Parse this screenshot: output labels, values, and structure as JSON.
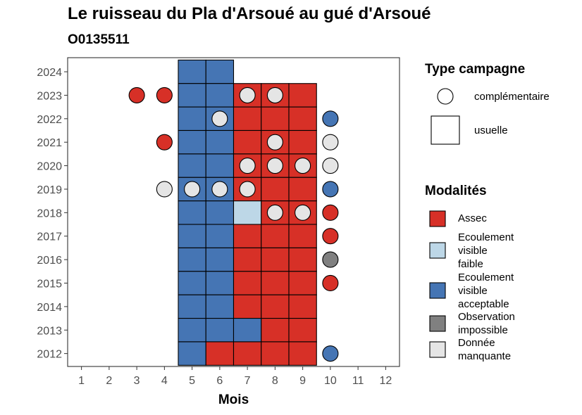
{
  "chart_data": {
    "type": "heatmap",
    "title": "Le ruisseau du Pla d'Arsoué au gué d'Arsoué",
    "subtitle": "O0135511",
    "xlabel": "Mois",
    "ylabel": "",
    "x_ticks": [
      "1",
      "2",
      "3",
      "4",
      "5",
      "6",
      "7",
      "8",
      "9",
      "10",
      "11",
      "12"
    ],
    "y_ticks": [
      "2012",
      "2013",
      "2014",
      "2015",
      "2016",
      "2017",
      "2018",
      "2019",
      "2020",
      "2021",
      "2022",
      "2023",
      "2024"
    ],
    "xlim": [
      0.5,
      12.5
    ],
    "ylim": [
      2011.45,
      2024.6
    ],
    "grid": false,
    "colors": {
      "Assec": "#d73027",
      "Ecoulement visible faible": "#bdd7e7",
      "Ecoulement visible acceptable": "#4575b4",
      "Observation impossible": "#808080",
      "Donnée manquante": "#e5e5e5"
    },
    "legend_type": {
      "title": "Type campagne",
      "items": [
        {
          "label": "complémentaire",
          "shape": "circle"
        },
        {
          "label": "usuelle",
          "shape": "square"
        }
      ]
    },
    "legend_modalites": {
      "title": "Modalités",
      "items": [
        {
          "key": "Assec",
          "lines": [
            "Assec"
          ]
        },
        {
          "key": "Ecoulement visible faible",
          "lines": [
            "Ecoulement",
            "visible",
            "faible"
          ]
        },
        {
          "key": "Ecoulement visible acceptable",
          "lines": [
            "Ecoulement",
            "visible",
            "acceptable"
          ]
        },
        {
          "key": "Observation impossible",
          "lines": [
            "Observation",
            "impossible"
          ]
        },
        {
          "key": "Donnée manquante",
          "lines": [
            "Donnée",
            "manquante"
          ]
        }
      ]
    },
    "usuelle": [
      {
        "year": 2024,
        "month": 5,
        "status": "Ecoulement visible acceptable"
      },
      {
        "year": 2024,
        "month": 6,
        "status": "Ecoulement visible acceptable"
      },
      {
        "year": 2023,
        "month": 5,
        "status": "Ecoulement visible acceptable"
      },
      {
        "year": 2023,
        "month": 6,
        "status": "Ecoulement visible acceptable"
      },
      {
        "year": 2023,
        "month": 7,
        "status": "Assec"
      },
      {
        "year": 2023,
        "month": 8,
        "status": "Assec"
      },
      {
        "year": 2023,
        "month": 9,
        "status": "Assec"
      },
      {
        "year": 2022,
        "month": 5,
        "status": "Ecoulement visible acceptable"
      },
      {
        "year": 2022,
        "month": 6,
        "status": "Ecoulement visible acceptable"
      },
      {
        "year": 2022,
        "month": 7,
        "status": "Assec"
      },
      {
        "year": 2022,
        "month": 8,
        "status": "Assec"
      },
      {
        "year": 2022,
        "month": 9,
        "status": "Assec"
      },
      {
        "year": 2021,
        "month": 5,
        "status": "Ecoulement visible acceptable"
      },
      {
        "year": 2021,
        "month": 6,
        "status": "Ecoulement visible acceptable"
      },
      {
        "year": 2021,
        "month": 7,
        "status": "Assec"
      },
      {
        "year": 2021,
        "month": 8,
        "status": "Assec"
      },
      {
        "year": 2021,
        "month": 9,
        "status": "Assec"
      },
      {
        "year": 2020,
        "month": 5,
        "status": "Ecoulement visible acceptable"
      },
      {
        "year": 2020,
        "month": 6,
        "status": "Ecoulement visible acceptable"
      },
      {
        "year": 2020,
        "month": 7,
        "status": "Assec"
      },
      {
        "year": 2020,
        "month": 8,
        "status": "Assec"
      },
      {
        "year": 2020,
        "month": 9,
        "status": "Assec"
      },
      {
        "year": 2019,
        "month": 5,
        "status": "Ecoulement visible acceptable"
      },
      {
        "year": 2019,
        "month": 6,
        "status": "Ecoulement visible acceptable"
      },
      {
        "year": 2019,
        "month": 7,
        "status": "Assec"
      },
      {
        "year": 2019,
        "month": 8,
        "status": "Assec"
      },
      {
        "year": 2019,
        "month": 9,
        "status": "Assec"
      },
      {
        "year": 2018,
        "month": 5,
        "status": "Ecoulement visible acceptable"
      },
      {
        "year": 2018,
        "month": 6,
        "status": "Ecoulement visible acceptable"
      },
      {
        "year": 2018,
        "month": 7,
        "status": "Ecoulement visible faible"
      },
      {
        "year": 2018,
        "month": 8,
        "status": "Assec"
      },
      {
        "year": 2018,
        "month": 9,
        "status": "Assec"
      },
      {
        "year": 2017,
        "month": 5,
        "status": "Ecoulement visible acceptable"
      },
      {
        "year": 2017,
        "month": 6,
        "status": "Ecoulement visible acceptable"
      },
      {
        "year": 2017,
        "month": 7,
        "status": "Assec"
      },
      {
        "year": 2017,
        "month": 8,
        "status": "Assec"
      },
      {
        "year": 2017,
        "month": 9,
        "status": "Assec"
      },
      {
        "year": 2016,
        "month": 5,
        "status": "Ecoulement visible acceptable"
      },
      {
        "year": 2016,
        "month": 6,
        "status": "Ecoulement visible acceptable"
      },
      {
        "year": 2016,
        "month": 7,
        "status": "Assec"
      },
      {
        "year": 2016,
        "month": 8,
        "status": "Assec"
      },
      {
        "year": 2016,
        "month": 9,
        "status": "Assec"
      },
      {
        "year": 2015,
        "month": 5,
        "status": "Ecoulement visible acceptable"
      },
      {
        "year": 2015,
        "month": 6,
        "status": "Ecoulement visible acceptable"
      },
      {
        "year": 2015,
        "month": 7,
        "status": "Assec"
      },
      {
        "year": 2015,
        "month": 8,
        "status": "Assec"
      },
      {
        "year": 2015,
        "month": 9,
        "status": "Assec"
      },
      {
        "year": 2014,
        "month": 5,
        "status": "Ecoulement visible acceptable"
      },
      {
        "year": 2014,
        "month": 6,
        "status": "Ecoulement visible acceptable"
      },
      {
        "year": 2014,
        "month": 7,
        "status": "Assec"
      },
      {
        "year": 2014,
        "month": 8,
        "status": "Assec"
      },
      {
        "year": 2014,
        "month": 9,
        "status": "Assec"
      },
      {
        "year": 2013,
        "month": 5,
        "status": "Ecoulement visible acceptable"
      },
      {
        "year": 2013,
        "month": 6,
        "status": "Ecoulement visible acceptable"
      },
      {
        "year": 2013,
        "month": 7,
        "status": "Ecoulement visible acceptable"
      },
      {
        "year": 2013,
        "month": 8,
        "status": "Assec"
      },
      {
        "year": 2013,
        "month": 9,
        "status": "Assec"
      },
      {
        "year": 2012,
        "month": 5,
        "status": "Ecoulement visible acceptable"
      },
      {
        "year": 2012,
        "month": 6,
        "status": "Assec"
      },
      {
        "year": 2012,
        "month": 7,
        "status": "Assec"
      },
      {
        "year": 2012,
        "month": 8,
        "status": "Assec"
      },
      {
        "year": 2012,
        "month": 9,
        "status": "Assec"
      }
    ],
    "complementaire": [
      {
        "year": 2023,
        "month": 3,
        "status": "Assec"
      },
      {
        "year": 2023,
        "month": 4,
        "status": "Assec"
      },
      {
        "year": 2023,
        "month": 7,
        "status": "Donnée manquante"
      },
      {
        "year": 2023,
        "month": 8,
        "status": "Donnée manquante"
      },
      {
        "year": 2022,
        "month": 6,
        "status": "Donnée manquante"
      },
      {
        "year": 2022,
        "month": 10,
        "status": "Ecoulement visible acceptable"
      },
      {
        "year": 2021,
        "month": 4,
        "status": "Assec"
      },
      {
        "year": 2021,
        "month": 8,
        "status": "Donnée manquante"
      },
      {
        "year": 2021,
        "month": 10,
        "status": "Donnée manquante"
      },
      {
        "year": 2020,
        "month": 7,
        "status": "Donnée manquante"
      },
      {
        "year": 2020,
        "month": 8,
        "status": "Donnée manquante"
      },
      {
        "year": 2020,
        "month": 9,
        "status": "Donnée manquante"
      },
      {
        "year": 2020,
        "month": 10,
        "status": "Donnée manquante"
      },
      {
        "year": 2019,
        "month": 4,
        "status": "Donnée manquante"
      },
      {
        "year": 2019,
        "month": 5,
        "status": "Donnée manquante"
      },
      {
        "year": 2019,
        "month": 6,
        "status": "Donnée manquante"
      },
      {
        "year": 2019,
        "month": 7,
        "status": "Donnée manquante"
      },
      {
        "year": 2019,
        "month": 10,
        "status": "Ecoulement visible acceptable"
      },
      {
        "year": 2018,
        "month": 8,
        "status": "Donnée manquante"
      },
      {
        "year": 2018,
        "month": 9,
        "status": "Donnée manquante"
      },
      {
        "year": 2018,
        "month": 10,
        "status": "Assec"
      },
      {
        "year": 2017,
        "month": 10,
        "status": "Assec"
      },
      {
        "year": 2016,
        "month": 10,
        "status": "Observation impossible"
      },
      {
        "year": 2015,
        "month": 10,
        "status": "Assec"
      },
      {
        "year": 2012,
        "month": 10,
        "status": "Ecoulement visible acceptable"
      }
    ]
  }
}
